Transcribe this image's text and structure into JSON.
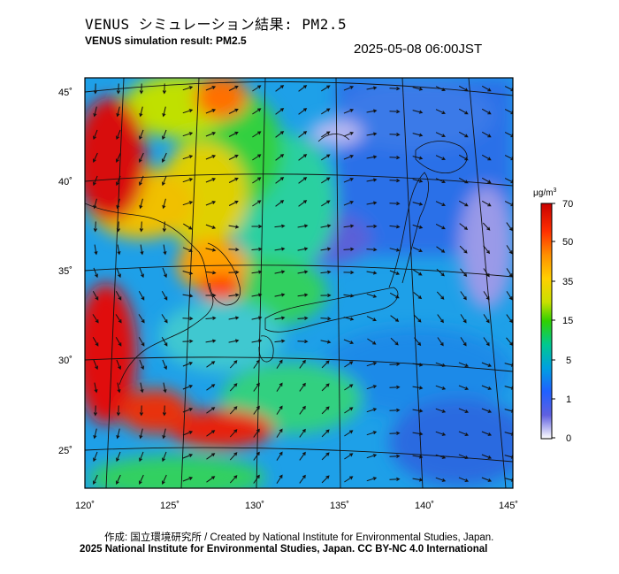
{
  "header": {
    "title_jp": "VENUS シミュレーション結果: PM2.5",
    "title_en": "VENUS simulation result: PM2.5",
    "timestamp": "2025-05-08 06:00JST"
  },
  "map": {
    "region": "East Asia / Japan",
    "lat_labels": [
      "45˚",
      "40˚",
      "35˚",
      "30˚",
      "25˚"
    ],
    "lon_labels": [
      "120˚",
      "125˚",
      "130˚",
      "135˚",
      "140˚",
      "145˚"
    ],
    "overlay": "wind vector arrows"
  },
  "colorbar": {
    "unit_base": "μg/m",
    "unit_sup": "3",
    "ticks": [
      "70",
      "50",
      "35",
      "15",
      "5",
      "1",
      "0"
    ],
    "colors": [
      "#d11a1a",
      "#ff4000",
      "#ffb000",
      "#e8e000",
      "#30d000",
      "#00c8a0",
      "#1e90ff",
      "#3030d0",
      "#ffffff"
    ]
  },
  "footer": {
    "credit_line1": "作成: 国立環境研究所 / Created by National Institute for Environmental Studies, Japan.",
    "credit_line2": "2025 National Institute for Environmental Studies, Japan. CC BY-NC 4.0 International"
  }
}
